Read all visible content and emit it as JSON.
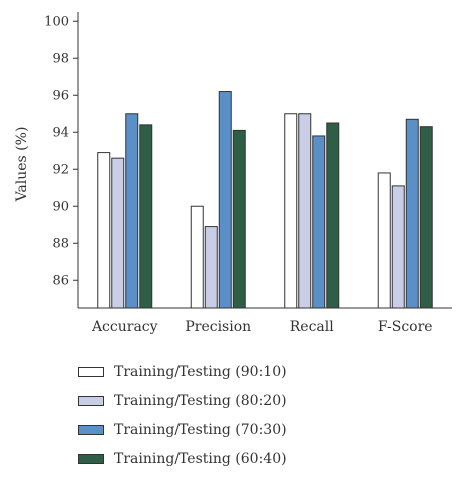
{
  "chart_data": {
    "type": "bar",
    "categories": [
      "Accuracy",
      "Precision",
      "Recall",
      "F-Score"
    ],
    "ylabel": "Values (%)",
    "ylim": [
      84.5,
      100.5
    ],
    "yticks": [
      86,
      88,
      90,
      92,
      94,
      96,
      98,
      100
    ],
    "grid": false,
    "legend_position": "bottom",
    "series": [
      {
        "name": "Training/Testing (90:10)",
        "color": "#ffffff",
        "values": [
          92.9,
          90.0,
          95.0,
          91.8
        ]
      },
      {
        "name": "Training/Testing (80:20)",
        "color": "#c9cde6",
        "values": [
          92.6,
          88.9,
          95.0,
          91.1
        ]
      },
      {
        "name": "Training/Testing (70:30)",
        "color": "#5a8fc8",
        "values": [
          95.0,
          96.2,
          93.8,
          94.7
        ]
      },
      {
        "name": "Training/Testing (60:40)",
        "color": "#2e5e46",
        "values": [
          94.4,
          94.1,
          94.5,
          94.3
        ]
      }
    ]
  }
}
